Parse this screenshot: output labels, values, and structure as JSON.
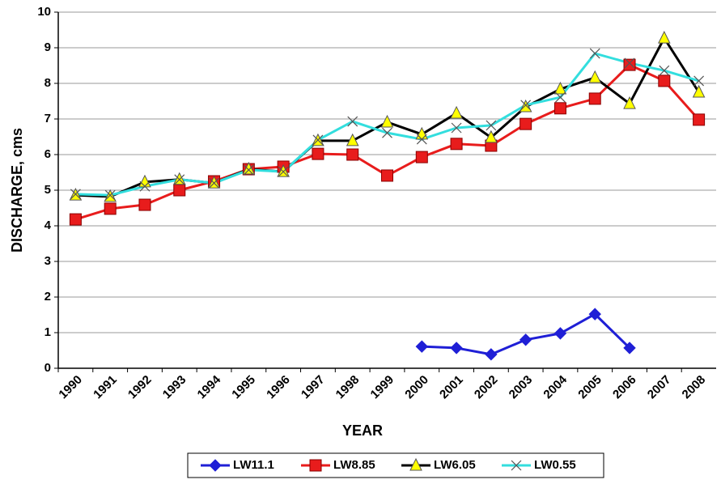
{
  "chart_data": {
    "type": "line",
    "x_label": "YEAR",
    "y_label": "DISCHARGE, cms",
    "categories": [
      "1990",
      "1991",
      "1992",
      "1993",
      "1994",
      "1995",
      "1996",
      "1997",
      "1998",
      "1999",
      "2000",
      "2001",
      "2002",
      "2003",
      "2004",
      "2005",
      "2006",
      "2007",
      "2008"
    ],
    "ylim": [
      0,
      10
    ],
    "yticks": [
      0,
      1,
      2,
      3,
      4,
      5,
      6,
      7,
      8,
      9,
      10
    ],
    "grid": true,
    "legend": "bottom",
    "series": [
      {
        "name": "LW11.1",
        "color": "#1f1fd6",
        "marker": "diamond",
        "marker_color": "#1f1fd6",
        "values": [
          null,
          null,
          null,
          null,
          null,
          null,
          null,
          null,
          null,
          null,
          0.61,
          0.57,
          0.39,
          0.8,
          0.98,
          1.52,
          0.57,
          null,
          null
        ]
      },
      {
        "name": "LW8.85",
        "color": "#e81c1c",
        "marker": "square",
        "marker_color": "#e81c1c",
        "values": [
          4.18,
          4.48,
          4.59,
          5.0,
          5.25,
          5.59,
          5.66,
          6.02,
          6.0,
          5.41,
          5.93,
          6.3,
          6.25,
          6.86,
          7.3,
          7.57,
          8.52,
          8.07,
          6.98
        ]
      },
      {
        "name": "LW6.05",
        "color": "#000000",
        "marker": "triangle",
        "marker_color": "#ffff00",
        "values": [
          4.86,
          4.82,
          5.23,
          5.3,
          5.2,
          5.59,
          5.52,
          6.39,
          6.39,
          6.91,
          6.57,
          7.16,
          6.48,
          7.34,
          7.84,
          8.16,
          7.43,
          9.27,
          7.75
        ]
      },
      {
        "name": "LW0.55",
        "color": "#33dede",
        "marker": "x",
        "marker_color": "#33dede",
        "values": [
          4.89,
          4.86,
          5.11,
          5.3,
          5.2,
          5.57,
          5.52,
          6.41,
          6.93,
          6.61,
          6.43,
          6.75,
          6.82,
          7.39,
          7.61,
          8.84,
          8.57,
          8.36,
          8.07
        ]
      }
    ]
  }
}
